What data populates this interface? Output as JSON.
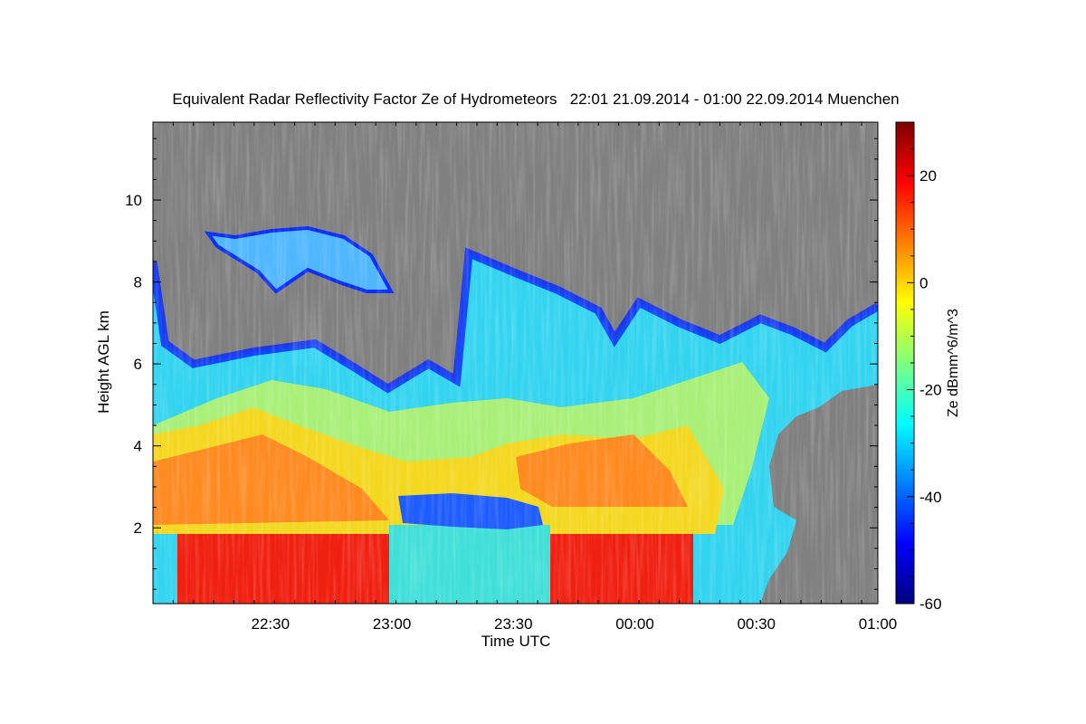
{
  "chart_data": {
    "type": "heatmap",
    "title": "Equivalent Radar Reflectivity Factor Ze of Hydrometeors   22:01 21.09.2014 - 01:00 22.09.2014 Muenchen",
    "xlabel": "Time UTC",
    "ylabel": "Height AGL km",
    "x_tick_labels": [
      "22:30",
      "23:00",
      "23:30",
      "00:00",
      "00:30",
      "01:00"
    ],
    "x_tick_minutes": [
      29,
      59,
      89,
      119,
      149,
      179
    ],
    "xlim_minutes": [
      0,
      179
    ],
    "y_ticks": [
      2,
      4,
      6,
      8,
      10
    ],
    "ylim": [
      0.15,
      11.9
    ],
    "colorbar": {
      "label": "Ze dBmm^6/m^3",
      "ticks": [
        20,
        0,
        -20,
        -40,
        -60
      ],
      "range": [
        -60,
        30
      ],
      "colors": [
        "#00007f",
        "#0000ff",
        "#007fff",
        "#00ffff",
        "#7fff7f",
        "#ffff00",
        "#ff7f00",
        "#ff0000",
        "#7f0000"
      ]
    },
    "no_data_color": "#808080",
    "cloud_top_km": [
      [
        0,
        8.5
      ],
      [
        3,
        6.5
      ],
      [
        10,
        6.0
      ],
      [
        25,
        6.3
      ],
      [
        40,
        6.5
      ],
      [
        50,
        5.9
      ],
      [
        58,
        5.4
      ],
      [
        68,
        6.0
      ],
      [
        75,
        5.6
      ],
      [
        78,
        8.7
      ],
      [
        90,
        8.2
      ],
      [
        100,
        7.8
      ],
      [
        110,
        7.3
      ],
      [
        114,
        6.6
      ],
      [
        120,
        7.5
      ],
      [
        130,
        7.0
      ],
      [
        140,
        6.6
      ],
      [
        150,
        7.1
      ],
      [
        158,
        6.8
      ],
      [
        166,
        6.4
      ],
      [
        172,
        7.0
      ],
      [
        179,
        7.4
      ]
    ]
  }
}
